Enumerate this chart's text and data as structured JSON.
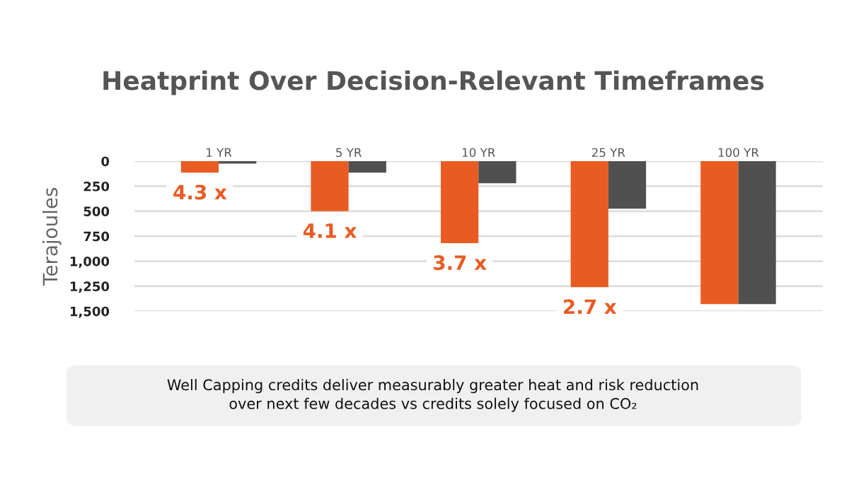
{
  "chart_data": {
    "type": "bar",
    "title": "Heatprint Over Decision-Relevant Timeframes",
    "ylabel": "Terajoules",
    "categories": [
      "1 YR",
      "5 YR",
      "10 YR",
      "25 YR",
      "100 YR"
    ],
    "series": [
      {
        "color": "#e85c24",
        "values": [
          115,
          500,
          820,
          1260,
          1430
        ]
      },
      {
        "color": "#505050",
        "values": [
          25,
          115,
          220,
          475,
          1430
        ]
      }
    ],
    "ylim": [
      1500,
      0
    ],
    "yticks": [
      0,
      250,
      500,
      750,
      {
        "value": 1000,
        "label": "1,000"
      },
      {
        "value": 1250,
        "label": "1,250"
      },
      {
        "value": 1500,
        "label": "1,500"
      }
    ],
    "grid": "y",
    "annotations": [
      "4.3 x",
      "4.1 x",
      "3.7 x",
      "2.7 x",
      "Well Capping credits deliver measurably greater heat and risk reduction\nover next few decades vs credits solely focused on CO₂"
    ]
  }
}
